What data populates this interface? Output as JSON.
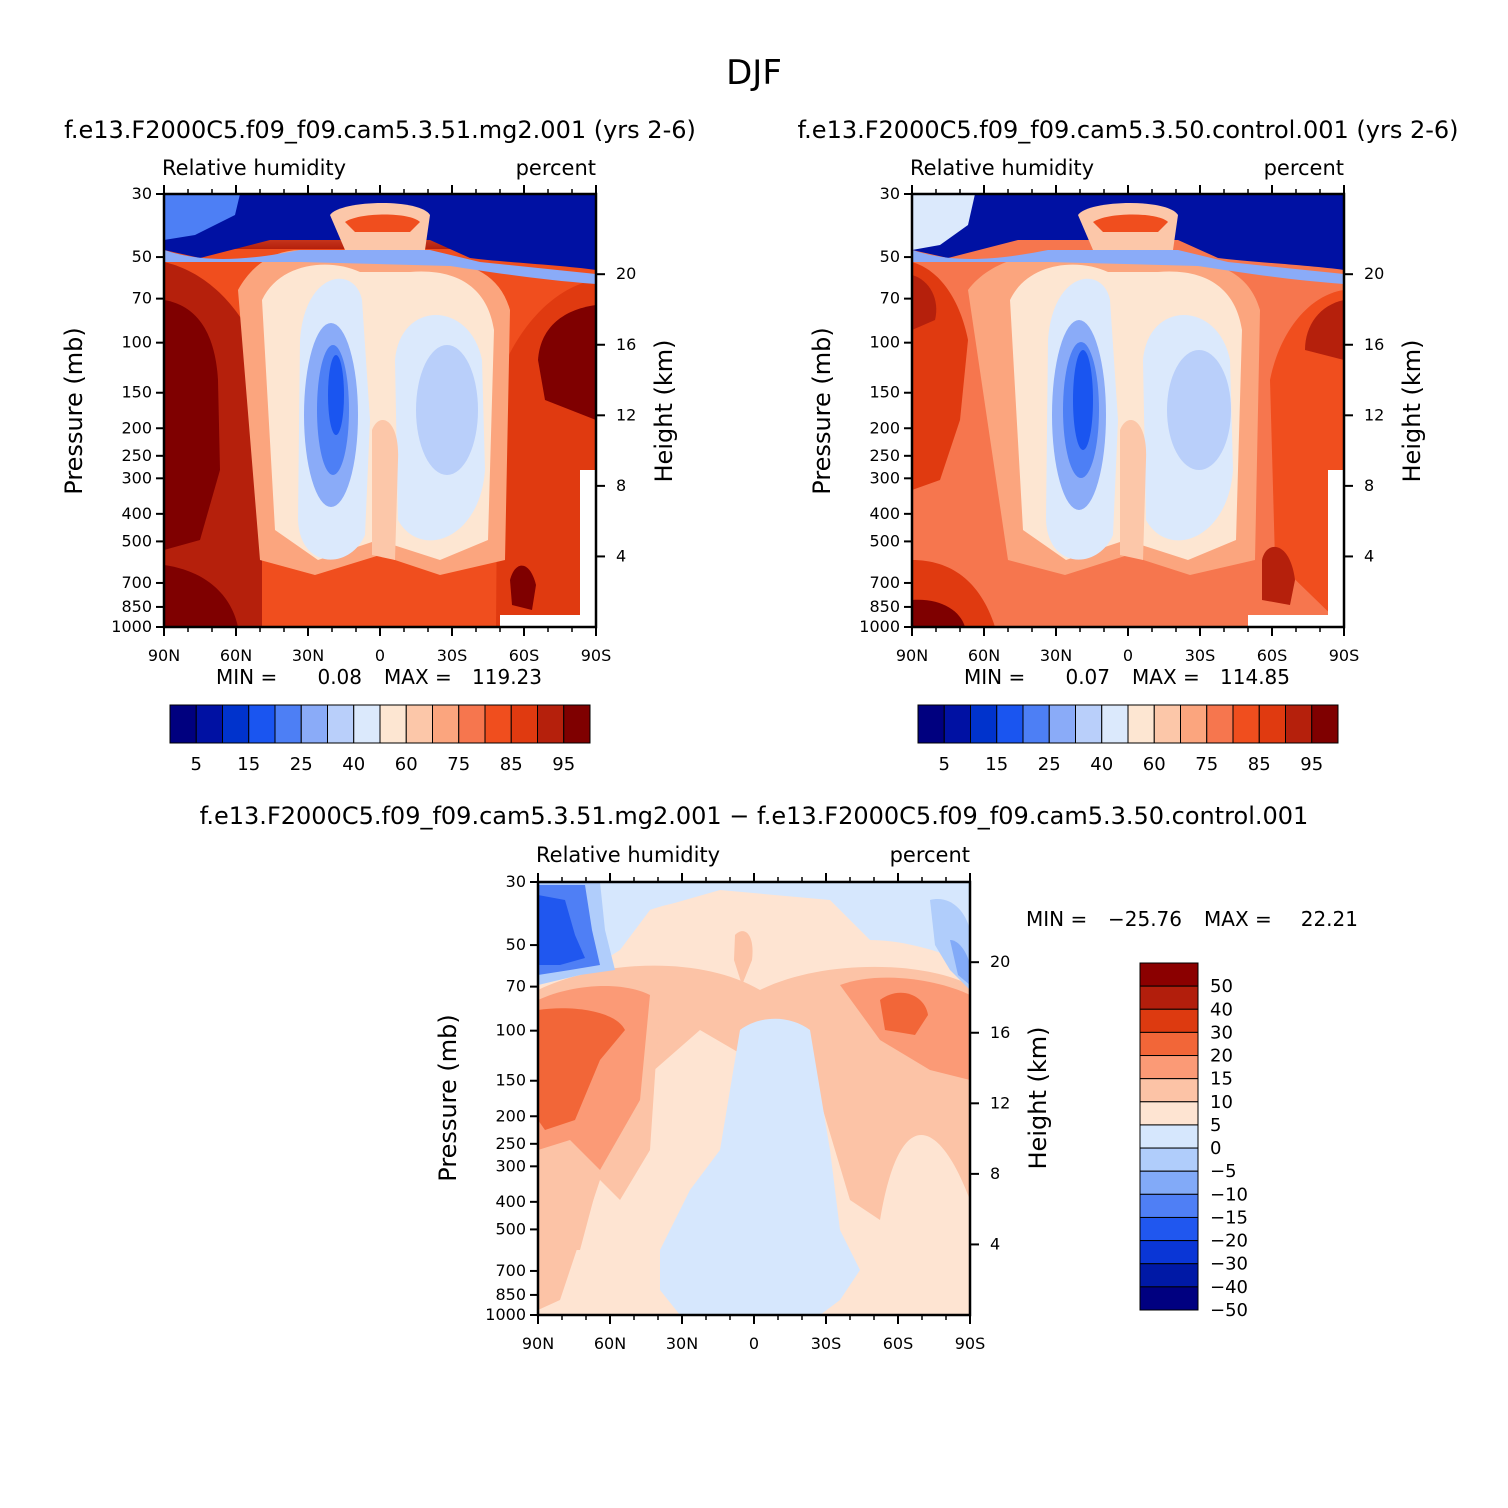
{
  "main_title": "DJF",
  "chart_data": [
    {
      "type": "contour",
      "title": "f.e13.F2000C5.f09_f09.cam5.3.51.mg2.001  (yrs 2-6)",
      "left_subtitle": "Relative humidity",
      "right_subtitle": "percent",
      "xlabel": "",
      "ylabel": "Pressure (mb)",
      "y2label": "Height (km)",
      "x_ticks": [
        "90N",
        "60N",
        "30N",
        "0",
        "30S",
        "60S",
        "90S"
      ],
      "y_ticks": [
        "30",
        "50",
        "70",
        "100",
        "150",
        "200",
        "250",
        "300",
        "400",
        "500",
        "700",
        "850",
        "1000"
      ],
      "y_tick_values": [
        30,
        50,
        70,
        100,
        150,
        200,
        250,
        300,
        400,
        500,
        700,
        850,
        1000
      ],
      "height_ticks": [
        "20",
        "16",
        "12",
        "8",
        "4"
      ],
      "height_tick_values": [
        20,
        16,
        12,
        8,
        4
      ],
      "xlim": [
        -90,
        90
      ],
      "ylim": [
        1000,
        30
      ],
      "stats": {
        "min_label": "MIN =",
        "min": "0.08",
        "max_label": "MAX =",
        "max": "119.23"
      },
      "colorbar_levels": [
        "5",
        "15",
        "25",
        "40",
        "60",
        "75",
        "85",
        "95"
      ],
      "colors": [
        "#00007f",
        "#0011a3",
        "#0033cc",
        "#1a55f0",
        "#4d7ff5",
        "#8aabf8",
        "#b9cffa",
        "#dbe9fc",
        "#fde6d2",
        "#fcc7a9",
        "#fba57e",
        "#f6764e",
        "#f04e1e",
        "#e03a10",
        "#b5200c",
        "#7f0000"
      ]
    },
    {
      "type": "contour",
      "title": "f.e13.F2000C5.f09_f09.cam5.3.50.control.001  (yrs 2-6)",
      "left_subtitle": "Relative humidity",
      "right_subtitle": "percent",
      "xlabel": "",
      "ylabel": "Pressure (mb)",
      "y2label": "Height (km)",
      "x_ticks": [
        "90N",
        "60N",
        "30N",
        "0",
        "30S",
        "60S",
        "90S"
      ],
      "y_ticks": [
        "30",
        "50",
        "70",
        "100",
        "150",
        "200",
        "250",
        "300",
        "400",
        "500",
        "700",
        "850",
        "1000"
      ],
      "y_tick_values": [
        30,
        50,
        70,
        100,
        150,
        200,
        250,
        300,
        400,
        500,
        700,
        850,
        1000
      ],
      "height_ticks": [
        "20",
        "16",
        "12",
        "8",
        "4"
      ],
      "height_tick_values": [
        20,
        16,
        12,
        8,
        4
      ],
      "xlim": [
        -90,
        90
      ],
      "ylim": [
        1000,
        30
      ],
      "stats": {
        "min_label": "MIN =",
        "min": "0.07",
        "max_label": "MAX =",
        "max": "114.85"
      },
      "colorbar_levels": [
        "5",
        "15",
        "25",
        "40",
        "60",
        "75",
        "85",
        "95"
      ],
      "colors": [
        "#00007f",
        "#0011a3",
        "#0033cc",
        "#1a55f0",
        "#4d7ff5",
        "#8aabf8",
        "#b9cffa",
        "#dbe9fc",
        "#fde6d2",
        "#fcc7a9",
        "#fba57e",
        "#f6764e",
        "#f04e1e",
        "#e03a10",
        "#b5200c",
        "#7f0000"
      ]
    },
    {
      "type": "contour",
      "title": "f.e13.F2000C5.f09_f09.cam5.3.51.mg2.001 − f.e13.F2000C5.f09_f09.cam5.3.50.control.001",
      "left_subtitle": "Relative humidity",
      "right_subtitle": "percent",
      "xlabel": "",
      "ylabel": "Pressure (mb)",
      "y2label": "Height (km)",
      "x_ticks": [
        "90N",
        "60N",
        "30N",
        "0",
        "30S",
        "60S",
        "90S"
      ],
      "y_ticks": [
        "30",
        "50",
        "70",
        "100",
        "150",
        "200",
        "250",
        "300",
        "400",
        "500",
        "700",
        "850",
        "1000"
      ],
      "y_tick_values": [
        30,
        50,
        70,
        100,
        150,
        200,
        250,
        300,
        400,
        500,
        700,
        850,
        1000
      ],
      "height_ticks": [
        "20",
        "16",
        "12",
        "8",
        "4"
      ],
      "height_tick_values": [
        20,
        16,
        12,
        8,
        4
      ],
      "xlim": [
        -90,
        90
      ],
      "ylim": [
        1000,
        30
      ],
      "stats": {
        "min_label": "MIN =",
        "min": "−25.76",
        "max_label": "MAX =",
        "max": "22.21"
      },
      "colorbar_levels": [
        "50",
        "40",
        "30",
        "20",
        "15",
        "10",
        "5",
        "0",
        "−5",
        "−10",
        "−15",
        "−20",
        "−30",
        "−40",
        "−50"
      ],
      "colors": [
        "#8b0000",
        "#b21e0c",
        "#dd3a10",
        "#f26638",
        "#fb9a76",
        "#fcc3a6",
        "#fee4d2",
        "#d6e7fd",
        "#b0cdfb",
        "#82aaf8",
        "#4f7ff5",
        "#2057ef",
        "#0a36d6",
        "#0019a6",
        "#000080"
      ]
    }
  ]
}
